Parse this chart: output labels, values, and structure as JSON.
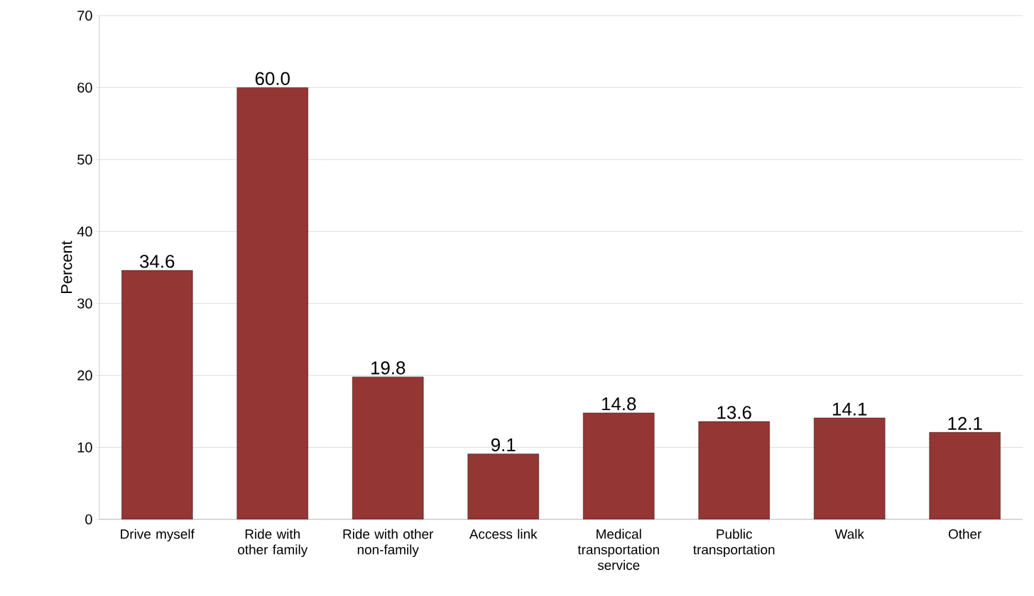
{
  "chart_data": {
    "type": "bar",
    "ylabel": "Percent",
    "categories": [
      "Drive myself",
      "Ride with other family",
      "Ride with other non-family",
      "Access link",
      "Medical transportation service",
      "Public transportation",
      "Walk",
      "Other"
    ],
    "values": [
      34.6,
      60.0,
      19.8,
      9.1,
      14.8,
      13.6,
      14.1,
      12.1
    ],
    "color": "#943634",
    "ylim": [
      0,
      70
    ],
    "yticks": [
      0,
      10,
      20,
      30,
      40,
      50,
      60,
      70
    ],
    "grid": "y",
    "value_labels": [
      "34.6",
      "60.0",
      "19.8",
      "9.1",
      "14.8",
      "13.6",
      "14.1",
      "12.1"
    ]
  }
}
